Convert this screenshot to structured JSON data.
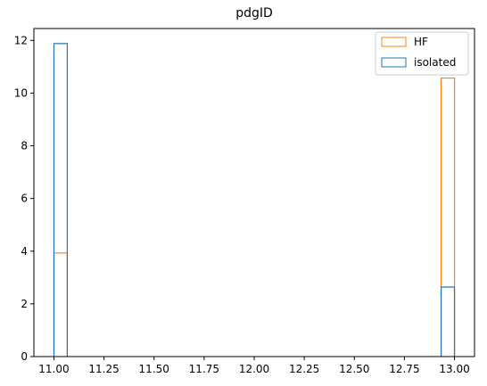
{
  "chart_data": {
    "type": "bar",
    "title": "pdgID",
    "xlabel": "",
    "ylabel": "",
    "xlim": [
      10.9,
      13.1
    ],
    "ylim": [
      0,
      12.45
    ],
    "x_ticks": [
      "11.00",
      "11.25",
      "11.50",
      "11.75",
      "12.00",
      "12.25",
      "12.50",
      "12.75",
      "13.00"
    ],
    "y_ticks": [
      "0",
      "2",
      "4",
      "6",
      "8",
      "10",
      "12"
    ],
    "grid": false,
    "legend_position": "top-right",
    "histtype": "step",
    "bin_edges": [
      11.0,
      11.0667,
      12.9333,
      13.0
    ],
    "series": [
      {
        "name": "HF",
        "color": "#ff7f0e",
        "bins": [
          {
            "x0": 11.0,
            "x1": 11.0667,
            "value": 3.93
          },
          {
            "x0": 12.9333,
            "x1": 13.0,
            "value": 10.57
          }
        ]
      },
      {
        "name": "isolated",
        "color": "#1f77b4",
        "bins": [
          {
            "x0": 11.0,
            "x1": 11.0667,
            "value": 11.88
          },
          {
            "x0": 12.9333,
            "x1": 13.0,
            "value": 2.64
          }
        ]
      }
    ]
  }
}
